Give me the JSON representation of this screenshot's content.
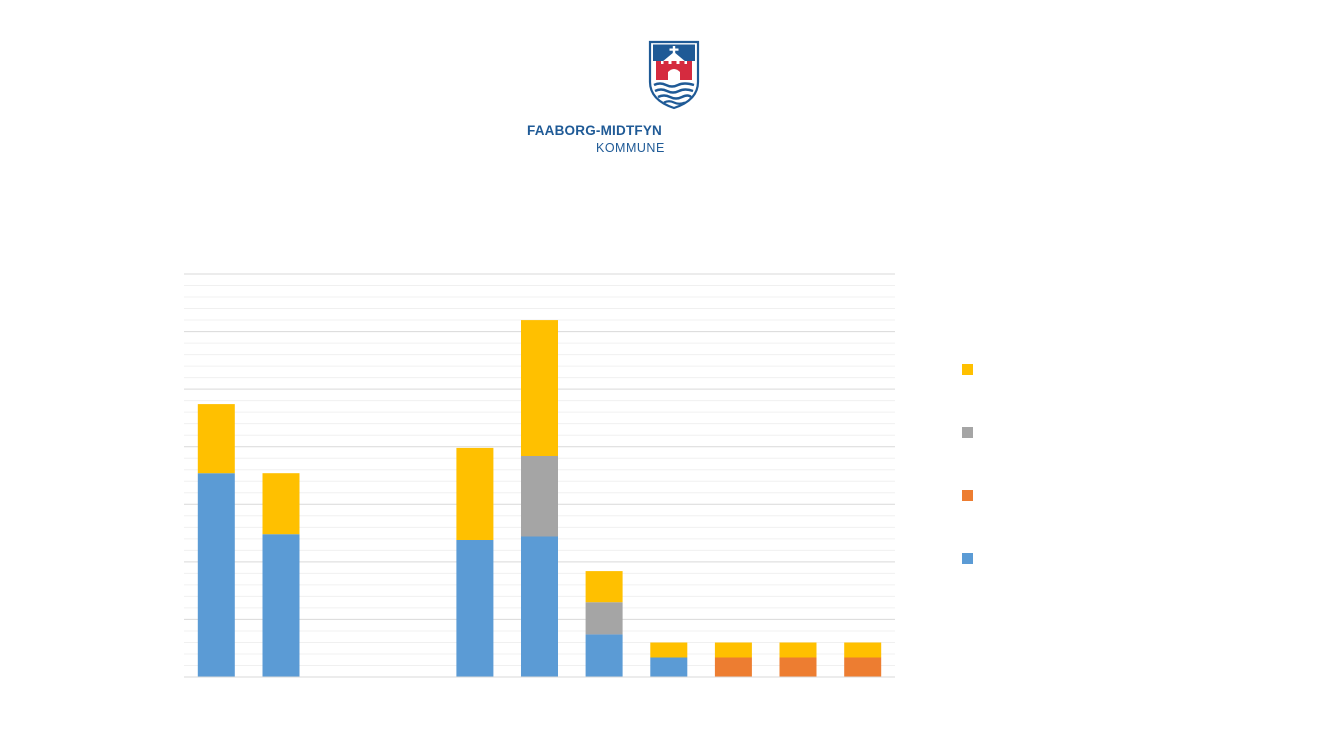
{
  "logo": {
    "name": "FAABORG-MIDTFYN",
    "subtitle": "KOMMUNE",
    "colors": {
      "blue": "#1f5a96",
      "red": "#d52b3f"
    }
  },
  "chart_data": {
    "type": "bar",
    "stacked": true,
    "title": "",
    "xlabel": "",
    "ylabel": "",
    "categories": [
      "",
      "",
      "",
      "",
      "",
      "",
      "",
      "",
      "",
      "",
      ""
    ],
    "ylim": [
      0,
      35
    ],
    "grid": {
      "major_step": 5,
      "minor_step": 1
    },
    "series": [
      {
        "name": "",
        "color": "#5b9bd5",
        "values": [
          17.7,
          12.4,
          0,
          0,
          11.9,
          12.2,
          3.7,
          1.7,
          0,
          0,
          0
        ]
      },
      {
        "name": "",
        "color": "#ed7d31",
        "values": [
          0,
          0,
          0,
          0,
          0,
          0,
          0,
          0,
          1.7,
          1.7,
          1.7
        ]
      },
      {
        "name": "",
        "color": "#a5a5a5",
        "values": [
          0,
          0,
          0,
          0,
          0,
          7.0,
          2.8,
          0,
          0,
          0,
          0
        ]
      },
      {
        "name": "",
        "color": "#ffc000",
        "values": [
          6.0,
          5.3,
          0,
          0,
          8.0,
          11.8,
          2.7,
          1.3,
          1.3,
          1.3,
          1.3
        ]
      }
    ],
    "legend": {
      "placement": "right",
      "order": [
        3,
        2,
        1,
        0
      ]
    }
  }
}
